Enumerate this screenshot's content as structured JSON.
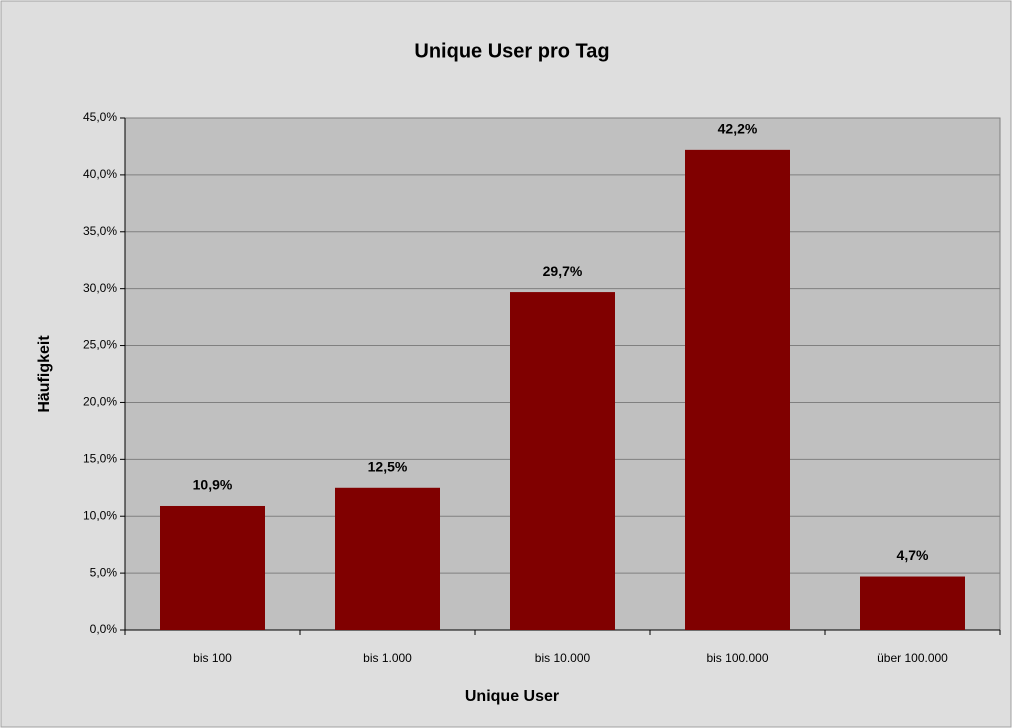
{
  "chart_data": {
    "type": "bar",
    "title": "Unique User pro Tag",
    "x_label": "Unique User",
    "y_label": "Häufigkeit",
    "categories": [
      "bis 100",
      "bis 1.000",
      "bis 10.000",
      "bis 100.000",
      "über 100.000"
    ],
    "values": [
      10.9,
      12.5,
      29.7,
      42.2,
      4.7
    ],
    "value_labels": [
      "10,9%",
      "12,5%",
      "29,7%",
      "42,2%",
      "4,7%"
    ],
    "color": "#800000",
    "ylim": [
      0,
      45
    ],
    "yticks": [
      {
        "value": 0,
        "label": "0,0%"
      },
      {
        "value": 5,
        "label": "5,0%"
      },
      {
        "value": 10,
        "label": "10,0%"
      },
      {
        "value": 15,
        "label": "15,0%"
      },
      {
        "value": 20,
        "label": "20,0%"
      },
      {
        "value": 25,
        "label": "25,0%"
      },
      {
        "value": 30,
        "label": "30,0%"
      },
      {
        "value": 35,
        "label": "35,0%"
      },
      {
        "value": 40,
        "label": "40,0%"
      },
      {
        "value": 45,
        "label": "45,0%"
      }
    ],
    "grid": true
  }
}
